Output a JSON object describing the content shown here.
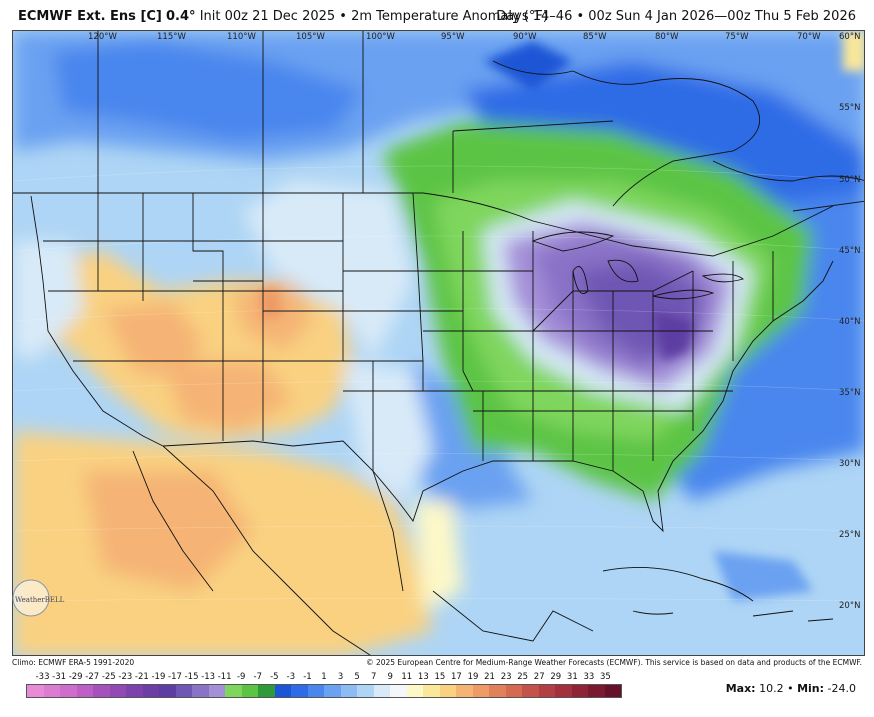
{
  "title": {
    "model": "ECMWF Ext. Ens [C]",
    "resolution": "0.4°",
    "init": "Init 00z 21 Dec 2025",
    "variable": "2m Temperature Anomaly (°F)",
    "valid": "Days 14–46 • 00z Sun 4 Jan 2026—00z Thu 5 Feb 2026",
    "separator": "•"
  },
  "map": {
    "longitude_labels": [
      "120°W",
      "115°W",
      "110°W",
      "105°W",
      "100°W",
      "95°W",
      "90°W",
      "85°W",
      "80°W",
      "75°W",
      "70°W"
    ],
    "latitude_labels": [
      "60°N",
      "55°N",
      "50°N",
      "45°N",
      "40°N",
      "35°N",
      "30°N",
      "25°N",
      "20°N"
    ],
    "logo_text": "WeatherBELL"
  },
  "footer": {
    "climo": "Climo: ECMWF ERA-5 1991-2020",
    "copyright": "© 2025 European Centre for Medium-Range Weather Forecasts (ECMWF). This service is based on data and products of the ECMWF."
  },
  "scale": {
    "labels": [
      "-33",
      "-31",
      "-29",
      "-27",
      "-25",
      "-23",
      "-21",
      "-19",
      "-17",
      "-15",
      "-13",
      "-11",
      "-9",
      "-7",
      "-5",
      "-3",
      "-1",
      "1",
      "3",
      "5",
      "7",
      "9",
      "11",
      "13",
      "15",
      "17",
      "19",
      "21",
      "23",
      "25",
      "27",
      "29",
      "31",
      "33",
      "35"
    ],
    "colors": [
      "#e78ad8",
      "#dc7bd2",
      "#cf6dcc",
      "#bd5fc4",
      "#a752bc",
      "#9349b5",
      "#7c42ad",
      "#6c3ea6",
      "#5d3da2",
      "#6f56b4",
      "#8a72c7",
      "#a48fd8",
      "#7fd65d",
      "#5bc445",
      "#2e9a3a",
      "#1b56d6",
      "#2d6ce6",
      "#4a86ee",
      "#6aa1f1",
      "#8cbcf3",
      "#aed5f5",
      "#d8eaf8",
      "#f3f7fa",
      "#fdf8c8",
      "#fbe79a",
      "#f9d181",
      "#f5b474",
      "#ee9b66",
      "#e2805b",
      "#d56a51",
      "#c4524a",
      "#b23f43",
      "#a1313d",
      "#8e2536",
      "#7a1a2f",
      "#651129"
    ],
    "max_label": "Max:",
    "max_value": "10.2",
    "min_label": "Min:",
    "min_value": "-24.0",
    "sep": "•"
  }
}
